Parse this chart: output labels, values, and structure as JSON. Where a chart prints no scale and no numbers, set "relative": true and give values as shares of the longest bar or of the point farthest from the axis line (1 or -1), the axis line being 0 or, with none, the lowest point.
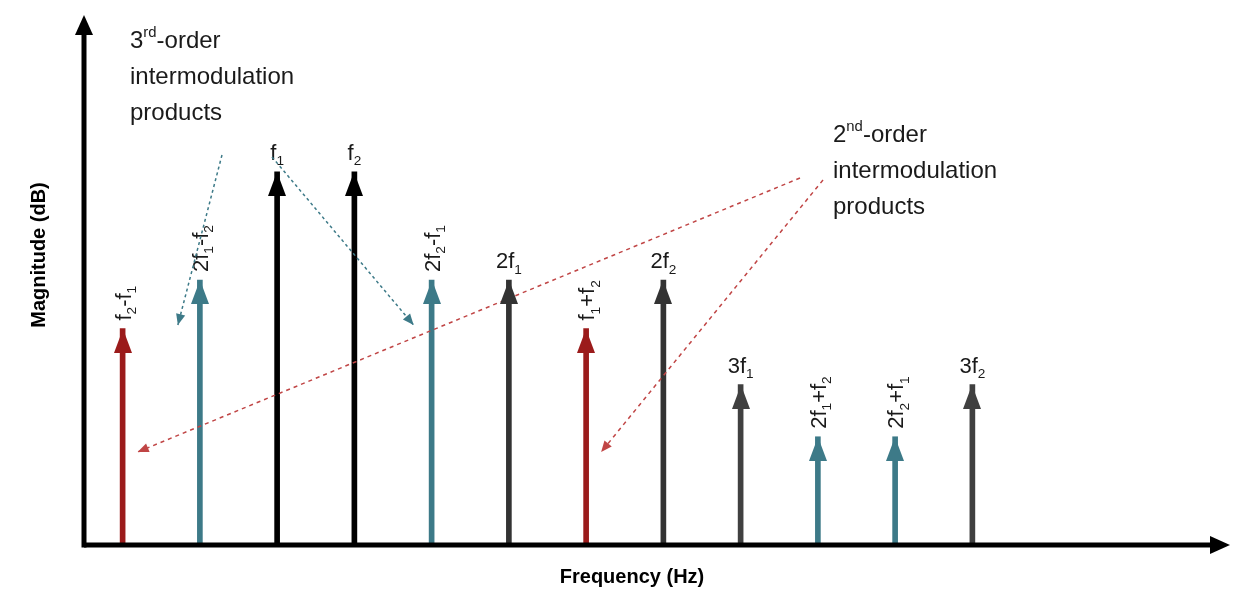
{
  "chart_data": {
    "type": "bar",
    "relative": true,
    "xlabel": "Frequency (Hz)",
    "ylabel": "Magnitude (dB)",
    "categories": [
      null,
      null,
      null,
      null,
      null,
      null,
      null,
      null,
      null,
      null,
      null,
      null
    ],
    "values": [
      0.58,
      0.71,
      1,
      1,
      0.71,
      0.71,
      0.58,
      0.71,
      0.43,
      0.29,
      0.29,
      0.43
    ],
    "colors": [
      "#9b1b1b",
      "#3d7a88",
      "#000000",
      "#000000",
      "#3d7a88",
      "#333333",
      "#9b1b1b",
      "#333333",
      "#404040",
      "#3d7a88",
      "#3d7a88",
      "#404040"
    ],
    "legend": false,
    "annotations": [
      "f$_{2}$-f$_{1}$",
      "2f$_{1}$-f$_{2}$",
      "f$_{1}$",
      "f$_{2}$",
      "2f$_{2}$-f$_{1}$",
      "2f$_{1}$",
      "f$_{1}$+f$_{2}$",
      "2f$_{2}$",
      "3f$_{1}$",
      "2f$_{1}$+f$_{2}$",
      "2f$_{2}$+f$_{1}$",
      "3f$_{2}$",
      "3$^{rd}$-order intermodulation products",
      "2$^{nd}$-order intermodulation products"
    ]
  }
}
